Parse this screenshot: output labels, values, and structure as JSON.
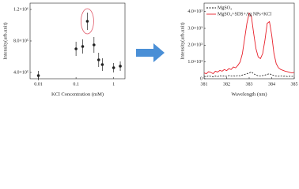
{
  "chart_data": [
    {
      "type": "scatter",
      "xlabel": "KCl Concentration (mM)",
      "ylabel": "Intensity(arb.unit)",
      "xlog": true,
      "x": [
        0.01,
        0.1,
        0.15,
        0.2,
        0.3,
        0.4,
        0.5,
        1,
        1.5
      ],
      "values": [
        360000,
        700000,
        730000,
        1050000,
        750000,
        560000,
        500000,
        460000,
        480000
      ],
      "errors": [
        60000,
        90000,
        90000,
        110000,
        100000,
        90000,
        80000,
        60000,
        60000
      ],
      "color": "#222222",
      "xlim": [
        0.006,
        2
      ],
      "xticks": [
        0.01,
        0.1,
        1
      ],
      "ylim": [
        320000,
        1280000
      ],
      "yticks": [
        {
          "value": 400000,
          "label": "4.0×10⁵"
        },
        {
          "value": 800000,
          "label": "8.0×10⁵"
        },
        {
          "value": 1200000,
          "label": "1.2×10⁶"
        }
      ]
    },
    {
      "type": "line",
      "xlabel": "Wavelength (nm)",
      "ylabel": "Intensity(arb.unit)",
      "legend": "top-left",
      "x": [
        381.0,
        381.1,
        381.2,
        381.3,
        381.4,
        381.5,
        381.6,
        381.7,
        381.8,
        381.9,
        382.0,
        382.1,
        382.2,
        382.3,
        382.4,
        382.5,
        382.6,
        382.7,
        382.8,
        382.9,
        383.0,
        383.1,
        383.2,
        383.3,
        383.4,
        383.5,
        383.6,
        383.7,
        383.8,
        383.9,
        384.0,
        384.1,
        384.2,
        384.3,
        384.4,
        384.5,
        384.6,
        384.7,
        384.8,
        384.9,
        385.0
      ],
      "series": [
        {
          "name": "MgSO₄",
          "color": "#111111",
          "dash": true,
          "values": [
            150,
            120,
            170,
            140,
            110,
            160,
            130,
            180,
            150,
            170,
            140,
            190,
            160,
            180,
            150,
            200,
            170,
            220,
            260,
            300,
            350,
            400,
            300,
            220,
            180,
            170,
            190,
            220,
            260,
            300,
            240,
            190,
            160,
            150,
            170,
            140,
            160,
            130,
            150,
            140,
            150
          ]
        },
        {
          "name": "MgSO₄+SDS+Ag NPs+KCl",
          "color": "#e8202a",
          "dash": false,
          "values": [
            350,
            300,
            420,
            380,
            300,
            450,
            400,
            500,
            450,
            550,
            480,
            600,
            550,
            700,
            650,
            800,
            1000,
            1500,
            2400,
            3300,
            3900,
            3700,
            2700,
            1800,
            1300,
            1200,
            1500,
            2300,
            3300,
            3400,
            2600,
            1500,
            900,
            650,
            550,
            500,
            450,
            420,
            380,
            350,
            380
          ]
        }
      ],
      "xlim": [
        381,
        385
      ],
      "xticks": [
        381,
        382,
        383,
        384,
        385
      ],
      "ylim": [
        0,
        4500
      ],
      "yticks": [
        0,
        {
          "value": 1000,
          "label": "1.0×10³"
        },
        {
          "value": 2000,
          "label": "2.0×10³"
        },
        {
          "value": 3000,
          "label": "3.0×10³"
        },
        {
          "value": 4000,
          "label": "4.0×10³"
        }
      ]
    }
  ]
}
